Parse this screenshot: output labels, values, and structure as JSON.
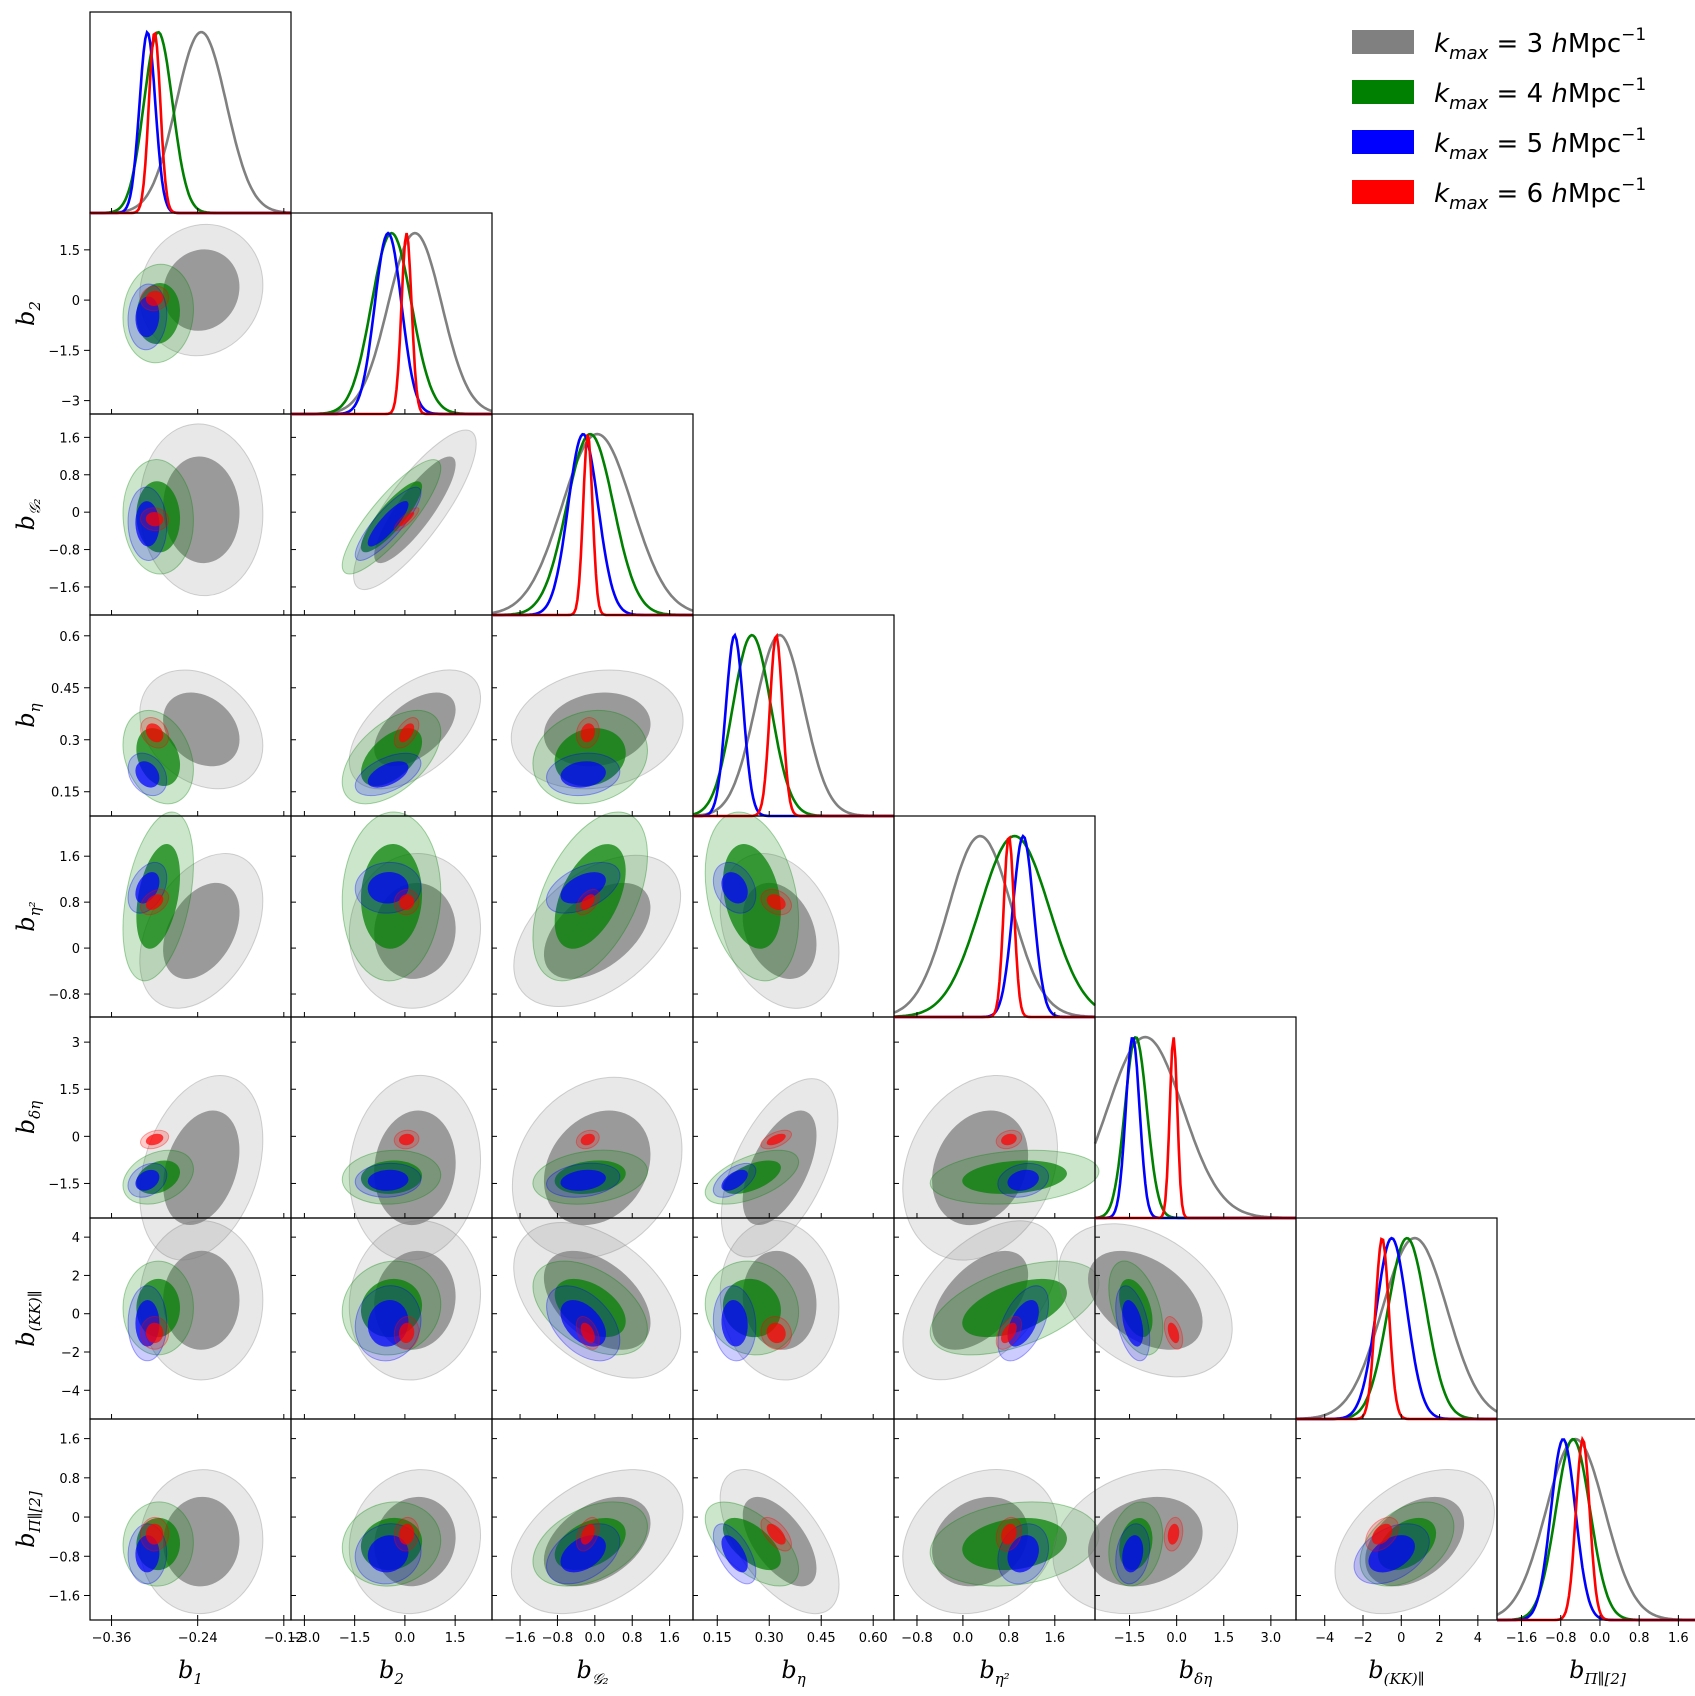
{
  "chart_data": {
    "type": "corner",
    "title": "",
    "parameters": [
      {
        "id": "b1",
        "label": "b",
        "sub": "1",
        "ticks": [
          -0.36,
          -0.24,
          -0.12
        ],
        "tick_labels": [
          "−0.36",
          "−0.24",
          "−0.12"
        ],
        "range": [
          -0.39,
          -0.11
        ]
      },
      {
        "id": "b2",
        "label": "b",
        "sub": "2",
        "ticks": [
          -3.0,
          -1.5,
          0.0,
          1.5
        ],
        "tick_labels": [
          "−3.0",
          "−1.5",
          "0.0",
          "1.5"
        ],
        "range": [
          -3.4,
          2.6
        ]
      },
      {
        "id": "bG2",
        "label": "b",
        "sub": "𝒢₂",
        "ticks": [
          -1.6,
          -0.8,
          0.0,
          0.8,
          1.6
        ],
        "tick_labels": [
          "−1.6",
          "−0.8",
          "0.0",
          "0.8",
          "1.6"
        ],
        "range": [
          -2.2,
          2.1
        ]
      },
      {
        "id": "beta",
        "label": "b",
        "sub": "η",
        "ticks": [
          0.15,
          0.3,
          0.45,
          0.6
        ],
        "tick_labels": [
          "0.15",
          "0.30",
          "0.45",
          "0.60"
        ],
        "range": [
          0.08,
          0.66
        ]
      },
      {
        "id": "beta2",
        "label": "b",
        "sub": "η²",
        "ticks": [
          -0.8,
          0.0,
          0.8,
          1.6
        ],
        "tick_labels": [
          "−0.8",
          "0.0",
          "0.8",
          "1.6"
        ],
        "range": [
          -1.2,
          2.3
        ]
      },
      {
        "id": "bdeltaeta",
        "label": "b",
        "sub": "δη",
        "ticks": [
          -1.5,
          0.0,
          1.5,
          3.0
        ],
        "tick_labels": [
          "−1.5",
          "0.0",
          "1.5",
          "3.0"
        ],
        "range": [
          -2.6,
          3.8
        ]
      },
      {
        "id": "bKK",
        "label": "b",
        "sub": "(KK)∥",
        "ticks": [
          -4,
          -2,
          0,
          2,
          4
        ],
        "tick_labels": [
          "−4",
          "−2",
          "0",
          "2",
          "4"
        ],
        "range": [
          -5.5,
          5.0
        ]
      },
      {
        "id": "bPi",
        "label": "b",
        "sub": "Π∥[2]",
        "ticks": [
          -1.6,
          -0.8,
          0.0,
          0.8,
          1.6
        ],
        "tick_labels": [
          "−1.6",
          "−0.8",
          "0.0",
          "0.8",
          "1.6"
        ],
        "range": [
          -2.1,
          2.0
        ]
      }
    ],
    "y_tick_labels": {
      "b2": [
        "1.5",
        "0",
        "−1.5",
        "−3"
      ],
      "bG2": [
        "1.6",
        "0.8",
        "0",
        "−0.8",
        "−1.6"
      ],
      "beta": [
        "0.6",
        "0.45",
        "0.3",
        "0.15"
      ],
      "beta2": [
        "1.6",
        "0.8",
        "0",
        "−0.8"
      ],
      "bdeltaeta": [
        "3",
        "1.5",
        "0",
        "−1.5"
      ],
      "bKK": [
        "4",
        "2",
        "0",
        "−2",
        "−4"
      ],
      "bPi": [
        "1.6",
        "0.8",
        "0",
        "−0.8",
        "−1.6"
      ]
    },
    "y_tick_values": {
      "b2": [
        1.5,
        0,
        -1.5,
        -3
      ],
      "bG2": [
        1.6,
        0.8,
        0,
        -0.8,
        -1.6
      ],
      "beta": [
        0.6,
        0.45,
        0.3,
        0.15
      ],
      "beta2": [
        1.6,
        0.8,
        0,
        -0.8
      ],
      "bdeltaeta": [
        3,
        1.5,
        0,
        -1.5
      ],
      "bKK": [
        4,
        2,
        0,
        -2,
        -4
      ],
      "bPi": [
        1.6,
        0.8,
        0,
        -0.8,
        -1.6
      ]
    },
    "series": [
      {
        "name": "k_max = 3 hMpc⁻¹",
        "kmax": "3",
        "color": "#808080",
        "means": [
          -0.235,
          0.3,
          0.05,
          0.33,
          0.3,
          -1.0,
          0.7,
          -0.5
        ],
        "sigmas": [
          0.035,
          0.8,
          0.75,
          0.07,
          0.55,
          1.2,
          1.7,
          0.6
        ]
      },
      {
        "name": "k_max = 4 hMpc⁻¹",
        "kmax": "4",
        "color": "#008000",
        "means": [
          -0.295,
          -0.4,
          -0.1,
          0.25,
          0.9,
          -1.3,
          0.3,
          -0.55
        ],
        "sigmas": [
          0.02,
          0.6,
          0.5,
          0.055,
          0.6,
          0.35,
          1.0,
          0.35
        ]
      },
      {
        "name": "k_max = 5 hMpc⁻¹",
        "kmax": "5",
        "color": "#0000ff",
        "means": [
          -0.31,
          -0.5,
          -0.25,
          0.2,
          1.05,
          -1.4,
          -0.5,
          -0.75
        ],
        "sigmas": [
          0.011,
          0.4,
          0.32,
          0.025,
          0.18,
          0.22,
          0.8,
          0.25
        ]
      },
      {
        "name": "k_max = 6 hMpc⁻¹",
        "kmax": "6",
        "color": "#ff0000",
        "means": [
          -0.3,
          0.05,
          -0.15,
          0.32,
          0.8,
          -0.1,
          -1.0,
          -0.35
        ],
        "sigmas": [
          0.008,
          0.15,
          0.1,
          0.018,
          0.09,
          0.12,
          0.35,
          0.14
        ]
      }
    ],
    "legend": {
      "position": "top-right",
      "entries": [
        "3",
        "4",
        "5",
        "6"
      ],
      "prefix": "k",
      "prefix_sub": "max",
      "unit_h": "h",
      "unit_rest": "Mpc",
      "unit_exp": "−1"
    }
  }
}
